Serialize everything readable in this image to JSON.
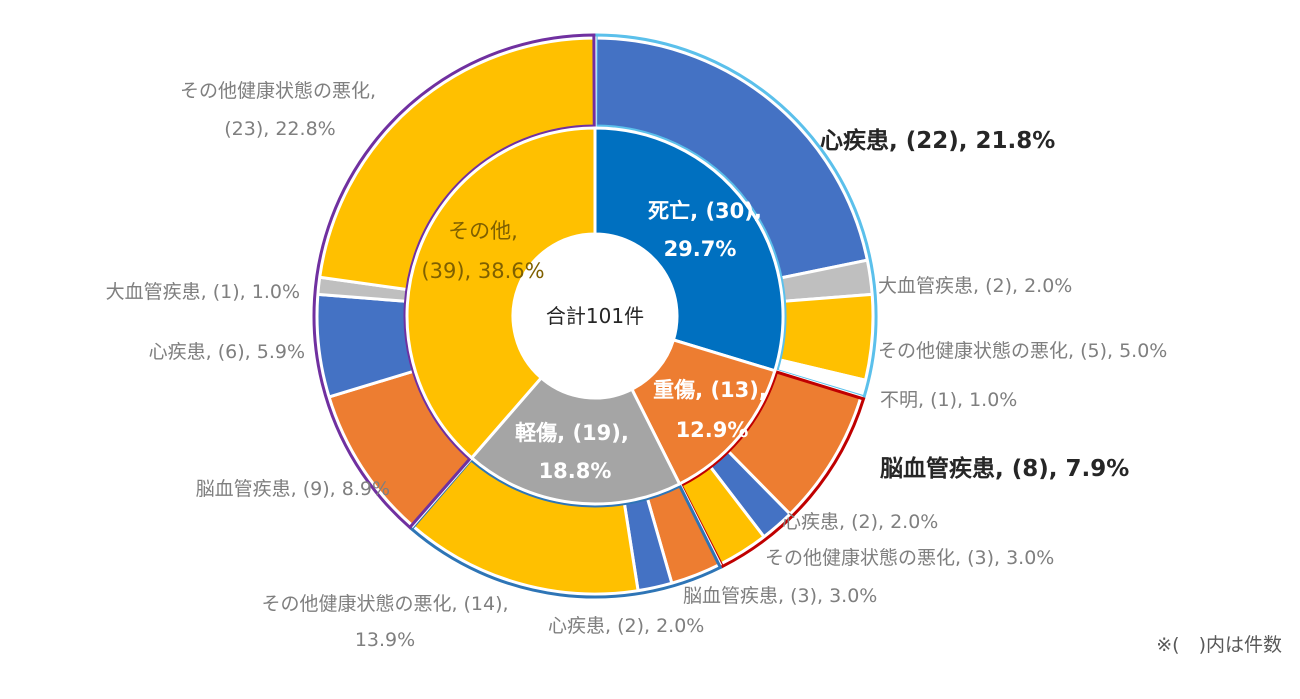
{
  "chart_data": {
    "type": "sunburst",
    "total_label": "合計101件",
    "note": "※(　)内は件数",
    "inner": [
      {
        "label": "死亡, (30),",
        "label2": "29.7%",
        "count": 30,
        "pct": 29.7
      },
      {
        "label": "重傷, (13),",
        "label2": "12.9%",
        "count": 13,
        "pct": 12.9
      },
      {
        "label": "軽傷, (19),",
        "label2": "18.8%",
        "count": 19,
        "pct": 18.8
      },
      {
        "label": "その他,",
        "label2": "(39), 38.6%",
        "count": 39,
        "pct": 38.6
      }
    ],
    "outer": [
      {
        "label": "心疾患, (22), 21.8%",
        "count": 22,
        "parent": "死亡"
      },
      {
        "label": "大血管疾患, (2), 2.0%",
        "count": 2,
        "parent": "死亡"
      },
      {
        "label": "その他健康状態の悪化, (5), 5.0%",
        "count": 5,
        "parent": "死亡"
      },
      {
        "label": "不明, (1), 1.0%",
        "count": 1,
        "parent": "死亡"
      },
      {
        "label": "脳血管疾患, (8), 7.9%",
        "count": 8,
        "parent": "重傷"
      },
      {
        "label": "心疾患, (2), 2.0%",
        "count": 2,
        "parent": "重傷"
      },
      {
        "label": "その他健康状態の悪化, (3), 3.0%",
        "count": 3,
        "parent": "重傷"
      },
      {
        "label": "脳血管疾患, (3), 3.0%",
        "count": 3,
        "parent": "軽傷"
      },
      {
        "label": "心疾患, (2), 2.0%",
        "count": 2,
        "parent": "軽傷"
      },
      {
        "label": "その他健康状態の悪化, (14),",
        "label2": "13.9%",
        "count": 14,
        "parent": "軽傷"
      },
      {
        "label": "脳血管疾患, (9), 8.9%",
        "count": 9,
        "parent": "その他"
      },
      {
        "label": "心疾患, (6), 5.9%",
        "count": 6,
        "parent": "その他"
      },
      {
        "label": "大血管疾患, (1), 1.0%",
        "count": 1,
        "parent": "その他"
      },
      {
        "label": "その他健康状態の悪化,",
        "label2": "(23), 22.8%",
        "count": 23,
        "parent": "その他"
      }
    ],
    "colors": {
      "death": "#0070c0",
      "serious": "#ed7d31",
      "minor": "#a5a5a5",
      "other": "#ffc000",
      "heart": "#4472c4",
      "vascular": "#bfbfbf",
      "health": "#ffc000",
      "stroke": "#ed7d31",
      "unknown": "#ffffff",
      "border_death": "#5bc0eb",
      "border_serious": "#c00000",
      "border_minor": "#2e75b6",
      "border_other": "#7030a0"
    }
  }
}
